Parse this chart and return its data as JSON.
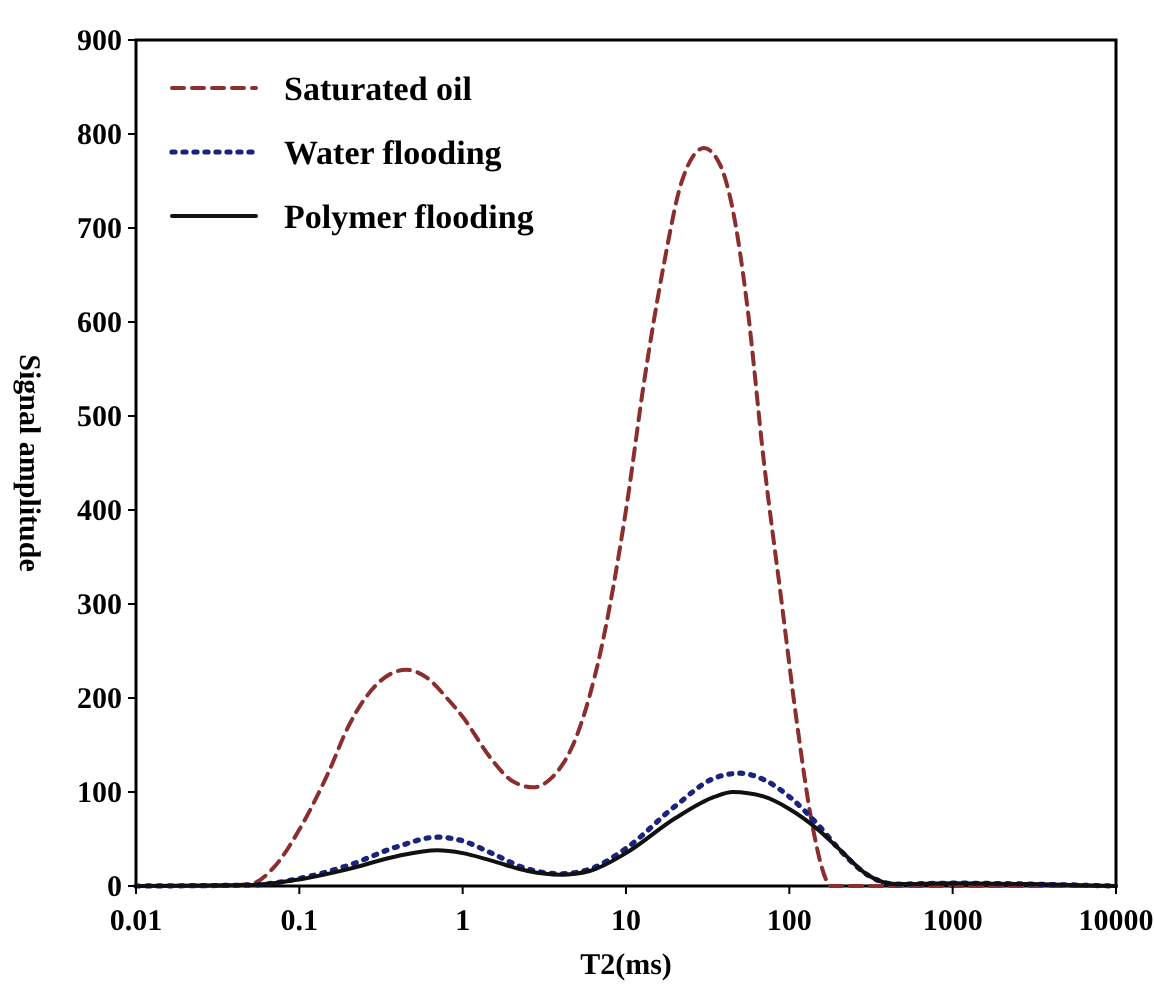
{
  "chart_data": {
    "type": "line",
    "xlabel": "T2(ms)",
    "ylabel": "Signal amplitude",
    "log": "x",
    "xlim": [
      0.01,
      10000
    ],
    "xticks": [
      0.01,
      0.1,
      1,
      10,
      100,
      1000,
      10000
    ],
    "ylim": [
      0,
      900
    ],
    "yticks": [
      0,
      100,
      200,
      300,
      400,
      500,
      600,
      700,
      800,
      900
    ],
    "grid": false,
    "legend": "top left",
    "marker": "none",
    "series": [
      {
        "name": "Saturated oil",
        "color": "#8b2e2e",
        "line_style": "dashed",
        "x": [
          0.01,
          0.03,
          0.05,
          0.07,
          0.1,
          0.15,
          0.2,
          0.3,
          0.45,
          0.6,
          0.8,
          1,
          1.5,
          2,
          2.7,
          3.5,
          5,
          7,
          10,
          13,
          17,
          22,
          30,
          37,
          45,
          55,
          70,
          90,
          110,
          140,
          170,
          180,
          1000,
          10000
        ],
        "values": [
          0,
          0,
          2,
          20,
          60,
          120,
          170,
          215,
          230,
          222,
          200,
          180,
          135,
          112,
          105,
          115,
          160,
          250,
          400,
          540,
          660,
          750,
          785,
          770,
          720,
          620,
          450,
          300,
          180,
          60,
          5,
          0,
          0,
          0
        ]
      },
      {
        "name": "Water flooding",
        "color": "#1a237e",
        "line_style": "dotted",
        "x": [
          0.01,
          0.05,
          0.1,
          0.2,
          0.4,
          0.7,
          1,
          1.5,
          2.5,
          4,
          6,
          10,
          20,
          35,
          50,
          70,
          100,
          150,
          200,
          300,
          450,
          1000,
          3000,
          10000
        ],
        "values": [
          0,
          1,
          8,
          22,
          42,
          52,
          48,
          35,
          18,
          13,
          18,
          40,
          85,
          115,
          120,
          113,
          95,
          65,
          40,
          12,
          2,
          3,
          2,
          0
        ]
      },
      {
        "name": "Polymer flooding",
        "color": "#111111",
        "line_style": "solid",
        "x": [
          0.01,
          0.05,
          0.1,
          0.2,
          0.4,
          0.7,
          1,
          1.5,
          2.5,
          4,
          6,
          10,
          20,
          35,
          45,
          70,
          100,
          150,
          200,
          300,
          450,
          1000,
          3000,
          10000
        ],
        "values": [
          0,
          1,
          7,
          18,
          32,
          38,
          35,
          27,
          16,
          12,
          16,
          35,
          72,
          95,
          100,
          95,
          82,
          60,
          40,
          12,
          2,
          3,
          2,
          0
        ]
      }
    ]
  }
}
